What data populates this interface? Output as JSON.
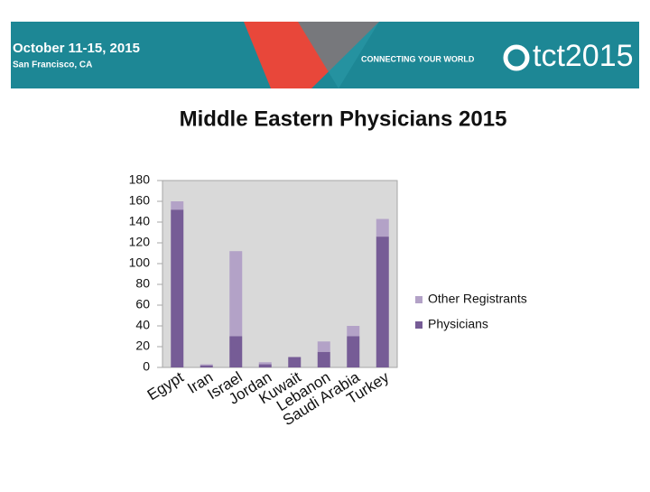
{
  "header": {
    "dates": "October 11-15, 2015",
    "location": "San Francisco, CA",
    "tagline": "CONNECTING YOUR WORLD",
    "brand": "tct2015"
  },
  "chart_data": {
    "type": "stacked_bar",
    "title": "Middle Eastern Physicians 2015",
    "categories": [
      "Egypt",
      "Iran",
      "Israel",
      "Jordan",
      "Kuwait",
      "Lebanon",
      "Saudi Arabia",
      "Turkey"
    ],
    "series": [
      {
        "name": "Physicians",
        "color": "#765c96",
        "values": [
          152,
          2,
          30,
          3,
          10,
          15,
          30,
          126
        ]
      },
      {
        "name": "Other Registrants",
        "color": "#b3a2c7",
        "values": [
          8,
          1,
          82,
          2,
          0,
          10,
          10,
          17
        ]
      }
    ],
    "ylim": [
      0,
      180
    ],
    "yticks": [
      0,
      20,
      40,
      60,
      80,
      100,
      120,
      140,
      160,
      180
    ],
    "grid": false
  }
}
